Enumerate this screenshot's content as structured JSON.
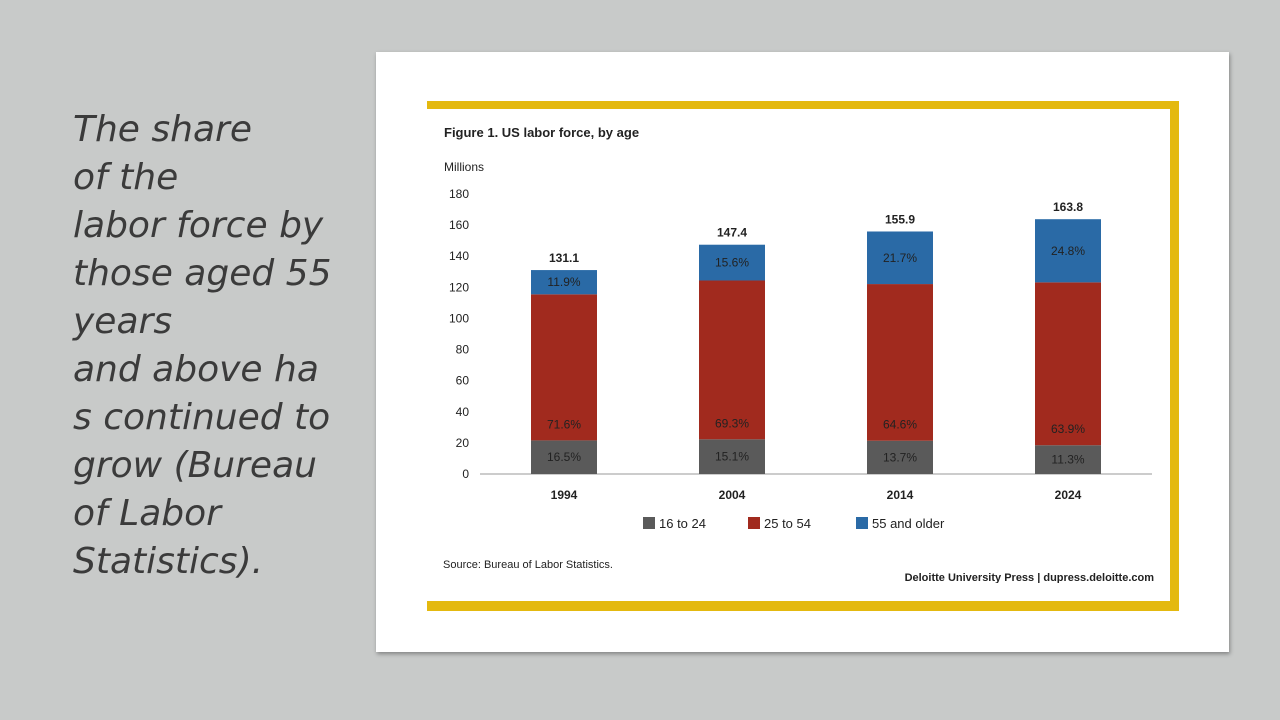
{
  "slide": {
    "text_lines": [
      "The share",
      "of the",
      "labor force by",
      "those aged 55",
      "years",
      "and above ha",
      "s continued to",
      "grow (Bureau",
      "of Labor",
      "Statistics)."
    ]
  },
  "chart_data": {
    "type": "bar",
    "stacked": true,
    "title": "Figure 1. US labor force, by age",
    "ylabel": "Millions",
    "ylim": [
      0,
      180
    ],
    "yticks": [
      0,
      20,
      40,
      60,
      80,
      100,
      120,
      140,
      160,
      180
    ],
    "categories": [
      "1994",
      "2004",
      "2014",
      "2024"
    ],
    "totals": [
      131.1,
      147.4,
      155.9,
      163.8
    ],
    "total_labels": [
      "131.1",
      "147.4",
      "155.9",
      "163.8"
    ],
    "series": [
      {
        "name": "16 to 24",
        "color": "#5a5a5a",
        "values": [
          21.6,
          22.3,
          21.4,
          18.5
        ],
        "labels": [
          "16.5%",
          "15.1%",
          "13.7%",
          "11.3%"
        ]
      },
      {
        "name": "25 to 54",
        "color": "#a12a1e",
        "values": [
          93.9,
          102.1,
          100.7,
          104.7
        ],
        "labels": [
          "71.6%",
          "69.3%",
          "64.6%",
          "63.9%"
        ]
      },
      {
        "name": "55 and older",
        "color": "#2a6aa6",
        "values": [
          15.6,
          23.0,
          33.8,
          40.6
        ],
        "labels": [
          "11.9%",
          "15.6%",
          "21.7%",
          "24.8%"
        ]
      }
    ],
    "legend_position": "bottom",
    "grid": false,
    "source": "Source: Bureau of Labor Statistics.",
    "credit": "Deloitte University Press  |  dupress.deloitte.com"
  }
}
